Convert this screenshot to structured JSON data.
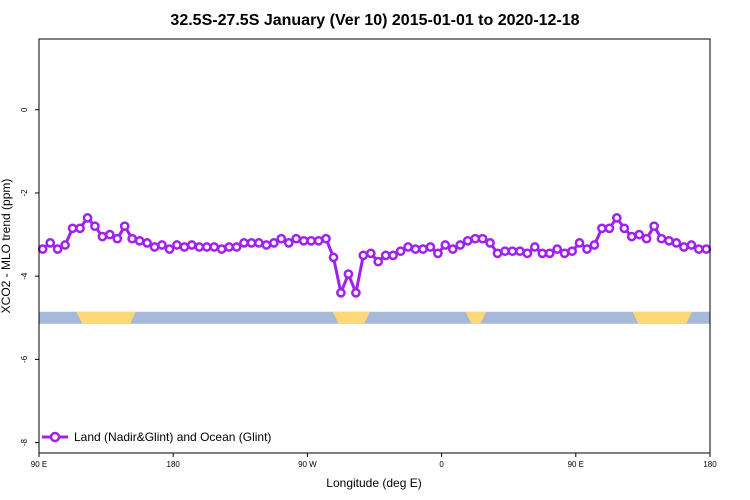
{
  "chart_data": {
    "type": "line",
    "title": "32.5S-27.5S January (Ver 10)   2015-01-01 to 2020-12-18",
    "xlabel": "Longitude (deg E)",
    "ylabel": "XCO2 - MLO trend (ppm)",
    "x_ticks": [
      "90 E",
      "180",
      "90 W",
      "0",
      "90 E",
      "180"
    ],
    "x_range": [
      90,
      540
    ],
    "y_ticks": [
      "0",
      "-2",
      "-4",
      "-6",
      "-8"
    ],
    "y_tick_values": [
      0,
      -2,
      -4,
      -6,
      -8
    ],
    "ylim": [
      -8.25,
      1.7
    ],
    "grid": false,
    "legend_position": "bottom-left",
    "series": [
      {
        "name": "Land (Nadir&Glint) and Ocean (Glint)",
        "color": "#a020f0",
        "x": [
          92.5,
          97.5,
          102.5,
          107.5,
          112.5,
          117.5,
          122.5,
          127.5,
          132.5,
          137.5,
          142.5,
          147.5,
          152.5,
          157.5,
          162.5,
          167.5,
          172.5,
          177.5,
          182.5,
          187.5,
          192.5,
          197.5,
          202.5,
          207.5,
          212.5,
          217.5,
          222.5,
          227.5,
          232.5,
          237.5,
          242.5,
          247.5,
          252.5,
          257.5,
          262.5,
          267.5,
          272.5,
          277.5,
          282.5,
          287.5,
          292.5,
          297.5,
          302.5,
          307.5,
          312.5,
          317.5,
          322.5,
          327.5,
          332.5,
          337.5,
          342.5,
          347.5,
          352.5,
          357.5,
          362.5,
          367.5,
          372.5,
          377.5,
          382.5,
          387.5,
          392.5,
          397.5,
          402.5,
          407.5,
          412.5,
          417.5,
          422.5,
          427.5,
          432.5,
          437.5,
          442.5,
          447.5,
          452.5,
          457.5,
          462.5,
          467.5,
          472.5,
          477.5,
          482.5,
          487.5,
          492.5,
          497.5,
          502.5,
          507.5,
          512.5,
          517.5,
          522.5,
          527.5,
          532.5,
          537.5
        ],
        "y": [
          -3.35,
          -3.2,
          -3.35,
          -3.25,
          -2.85,
          -2.85,
          -2.6,
          -2.8,
          -3.05,
          -3.0,
          -3.1,
          -2.8,
          -3.1,
          -3.15,
          -3.2,
          -3.3,
          -3.25,
          -3.35,
          -3.25,
          -3.3,
          -3.25,
          -3.3,
          -3.3,
          -3.3,
          -3.35,
          -3.3,
          -3.3,
          -3.2,
          -3.2,
          -3.2,
          -3.25,
          -3.2,
          -3.1,
          -3.2,
          -3.1,
          -3.15,
          -3.15,
          -3.15,
          -3.1,
          -3.55,
          -4.4,
          -3.95,
          -4.4,
          -3.5,
          -3.45,
          -3.65,
          -3.5,
          -3.5,
          -3.4,
          -3.3,
          -3.35,
          -3.35,
          -3.3,
          -3.45,
          -3.25,
          -3.35,
          -3.25,
          -3.15,
          -3.1,
          -3.1,
          -3.2,
          -3.45,
          -3.4,
          -3.4,
          -3.4,
          -3.45,
          -3.3,
          -3.45,
          -3.45,
          -3.35,
          -3.45,
          -3.4,
          -3.2,
          -3.35,
          -3.25,
          -2.85,
          -2.85,
          -2.6,
          -2.85,
          -3.05,
          -3.0,
          -3.1,
          -2.8,
          -3.1,
          -3.15,
          -3.2,
          -3.3,
          -3.25,
          -3.35,
          -3.35
        ]
      }
    ],
    "surface_band": {
      "y": -5.0,
      "ocean_color": "#a7b9d8",
      "land_color": "#fcd878",
      "land_ranges": [
        [
          115,
          155
        ],
        [
          287,
          312
        ],
        [
          376,
          390
        ],
        [
          488,
          528
        ]
      ]
    }
  }
}
